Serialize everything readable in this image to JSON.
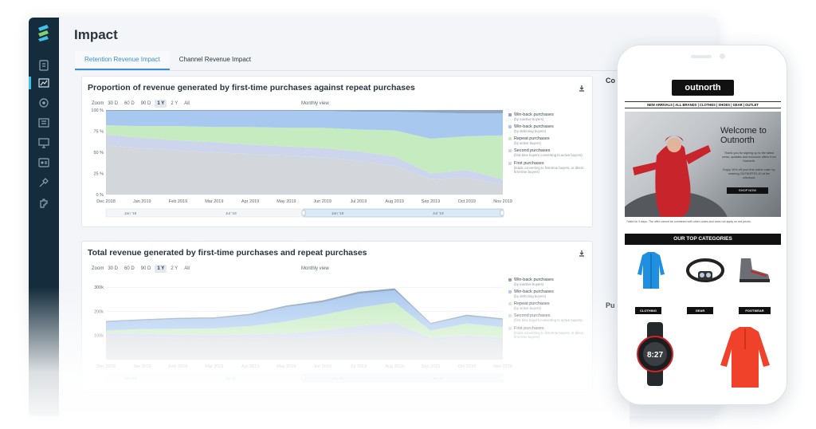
{
  "page_title": "Impact",
  "tabs": [
    {
      "label": "Retention Revenue Impact",
      "active": true
    },
    {
      "label": "Channel Revenue Impact",
      "active": false
    }
  ],
  "zoom": {
    "label": "Zoom",
    "options": [
      "30 D",
      "60 D",
      "90 D",
      "1 Y",
      "2 Y",
      "All"
    ],
    "selected": "1 Y",
    "view": "Monthly view"
  },
  "legend": [
    {
      "name": "Win-back purchases",
      "desc": "(by inactive buyers)",
      "color": "#8fa6bf"
    },
    {
      "name": "Win-back purchases",
      "desc": "(by defecting buyers)",
      "color": "#a9c8ef"
    },
    {
      "name": "Repeat purchases",
      "desc": "(by active buyers)",
      "color": "#c6ebc0"
    },
    {
      "name": "Second purchases",
      "desc": "(first-time buyers converting to active buyers)",
      "color": "#ccd5ec"
    },
    {
      "name": "First purchases",
      "desc": "(leads converting to first-time buyers, or direct first-time buyers)",
      "color": "#d3d6da"
    }
  ],
  "navigator_labels": [
    "Jan '18",
    "Jul '18",
    "Jan '19",
    "Jul '19"
  ],
  "chart_data": [
    {
      "type": "area",
      "title": "Proportion of revenue generated by first-time purchases against repeat purchases",
      "stacked": true,
      "x": [
        "Dec 2018",
        "Jan 2019",
        "Feb 2019",
        "Mar 2019",
        "Apr 2019",
        "May 2019",
        "Jun 2019",
        "Jul 2019",
        "Aug 2019",
        "Sep 2019",
        "Oct 2019",
        "Nov 2019"
      ],
      "y_ticks": [
        "0 %",
        "25 %",
        "50 %",
        "75 %",
        "100 %"
      ],
      "ylim": [
        0,
        100
      ],
      "series": [
        {
          "name": "First purchases",
          "values": [
            58,
            55,
            52,
            50,
            48,
            46,
            44,
            40,
            34,
            18,
            20,
            12
          ]
        },
        {
          "name": "Second purchases",
          "values": [
            13,
            12,
            12,
            12,
            11,
            11,
            11,
            11,
            11,
            7,
            9,
            6
          ]
        },
        {
          "name": "Repeat purchases",
          "values": [
            11,
            14,
            17,
            18,
            21,
            22,
            24,
            26,
            31,
            41,
            40,
            52
          ]
        },
        {
          "name": "Win-back purchases (by defecting buyers)",
          "values": [
            17,
            18,
            18,
            19,
            19,
            20,
            20,
            21,
            22,
            31,
            27,
            26
          ]
        },
        {
          "name": "Win-back purchases (by inactive buyers)",
          "values": [
            1,
            1,
            1,
            1,
            1,
            1,
            1,
            2,
            2,
            3,
            4,
            4
          ]
        }
      ]
    },
    {
      "type": "area",
      "title": "Total revenue generated by first-time purchases and repeat purchases",
      "stacked": true,
      "x": [
        "Dec 2018",
        "Jan 2019",
        "Feb 2019",
        "Mar 2019",
        "Apr 2019",
        "May 2019",
        "Jun 2019",
        "Jul 2019",
        "Aug 2019",
        "Sep 2019",
        "Oct 2019",
        "Nov 2019"
      ],
      "y_ticks": [
        "100k",
        "200k",
        "300k"
      ],
      "ylim": [
        0,
        350
      ],
      "series": [
        {
          "name": "First purchases",
          "values": [
            95,
            92,
            88,
            86,
            88,
            90,
            98,
            110,
            112,
            80,
            85,
            80
          ]
        },
        {
          "name": "Second purchases",
          "values": [
            15,
            15,
            15,
            15,
            16,
            18,
            22,
            30,
            40,
            10,
            15,
            10
          ]
        },
        {
          "name": "Repeat purchases",
          "values": [
            10,
            20,
            25,
            28,
            35,
            50,
            65,
            75,
            85,
            30,
            50,
            45
          ]
        },
        {
          "name": "Win-back purchases (by defecting buyers)",
          "values": [
            35,
            35,
            40,
            41,
            45,
            60,
            52,
            58,
            50,
            27,
            30,
            30
          ]
        },
        {
          "name": "Win-back purchases (by inactive buyers)",
          "values": [
            5,
            5,
            5,
            5,
            6,
            6,
            8,
            8,
            8,
            5,
            6,
            6
          ]
        }
      ]
    }
  ],
  "right_panel": {
    "heading_1": "Co",
    "heading_2": "Pu"
  },
  "phone": {
    "logo": "outnorth",
    "nav": "NEW ARRIVALS | ALL BRANDS | CLOTHES | SHOES | GEAR | OUTLET",
    "hero_title": "Welcome to Outnorth",
    "hero_text_1": "Thank you for signing up to the latest news, updates and exclusive offers from Outnorth.",
    "hero_text_2": "Enjoy 10% off your first online order by entering OUTNORTH-10 at the checkout.",
    "hero_button": "SHOP NOW",
    "hero_footnote": "*Valid for 5 days. The offer cannot be combined with other codes and does not apply on red prices.",
    "categories_title": "OUR TOP CATEGORIES",
    "categories": [
      "CLOTHING",
      "GEAR",
      "FOOTWEAR"
    ]
  },
  "colors": {
    "sidebar": "#142c3c",
    "accent": "#3f8fd0",
    "grid": "#e8ebef"
  }
}
